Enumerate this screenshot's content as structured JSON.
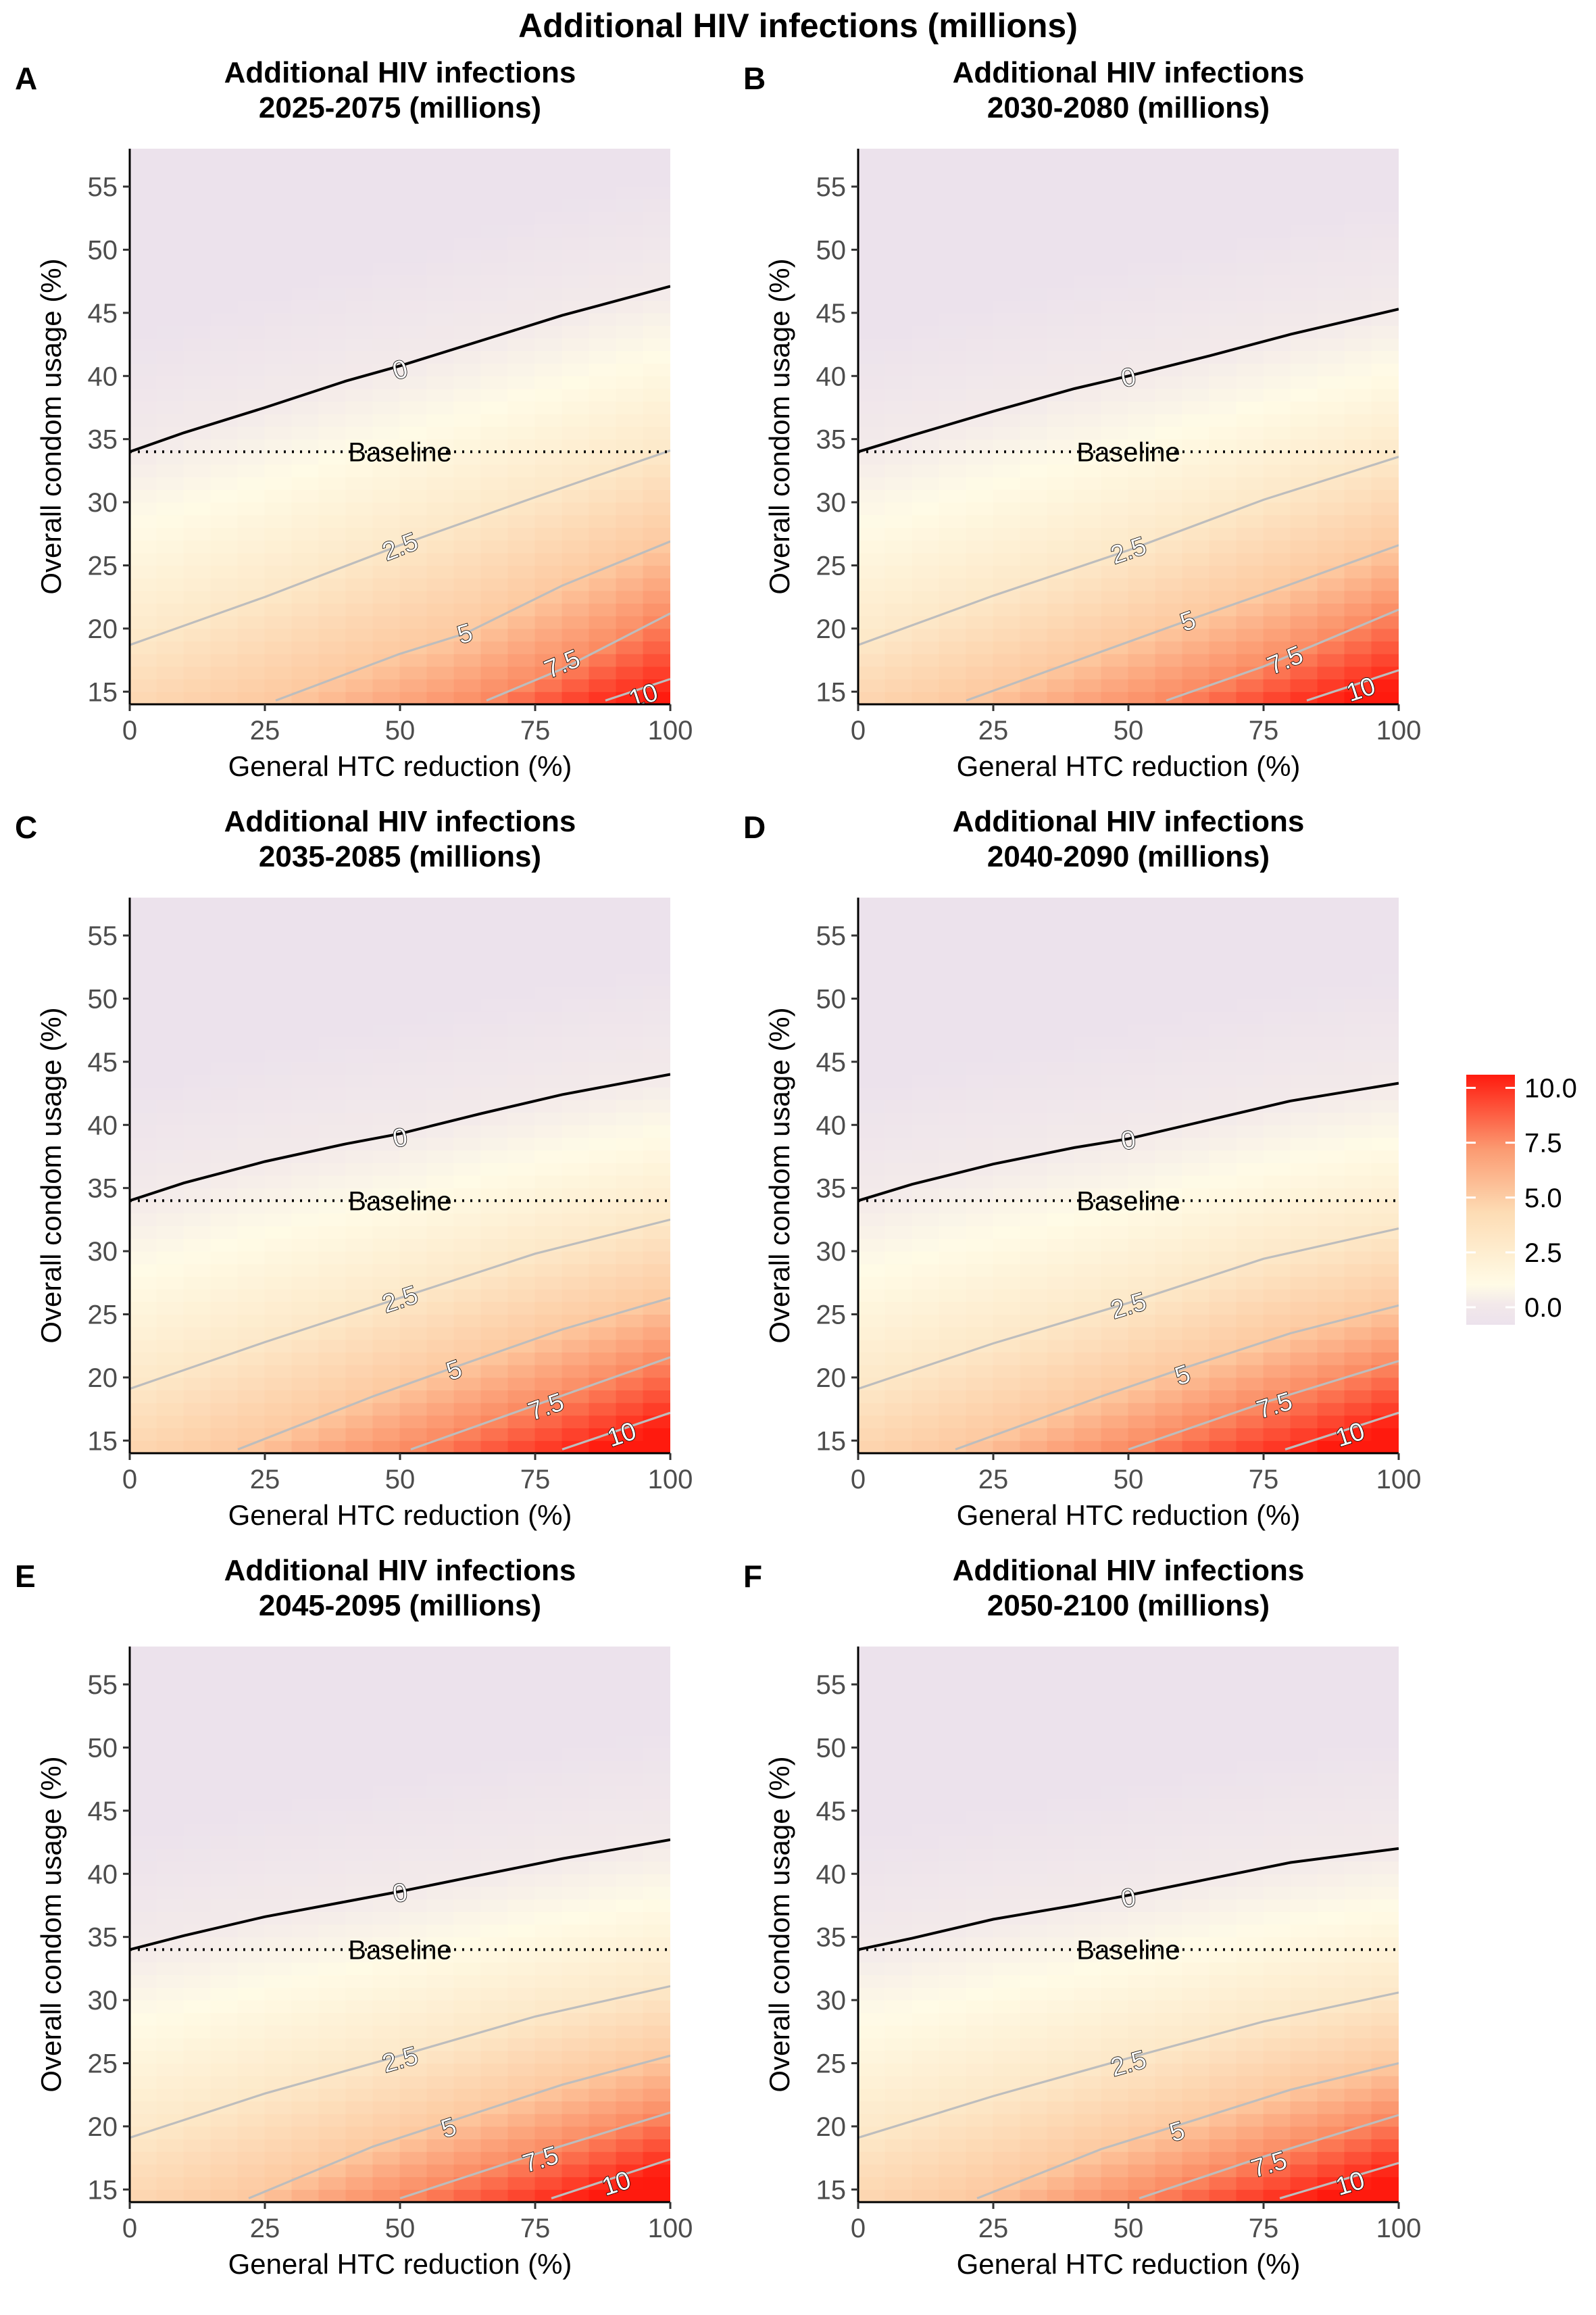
{
  "figure": {
    "title": "Additional HIV infections (millions)"
  },
  "chart_data": [
    {
      "type": "heatmap",
      "panel_letter": "A",
      "title": [
        "Additional HIV infections",
        "2025-2075 (millions)"
      ],
      "xlabel": "General HTC reduction (%)",
      "ylabel": "Overall condom usage (%)",
      "xlim": [
        0,
        100
      ],
      "ylim": [
        14,
        58
      ],
      "xticks": [
        0,
        25,
        50,
        75,
        100
      ],
      "yticks": [
        15,
        20,
        25,
        30,
        35,
        40,
        45,
        50,
        55
      ],
      "baseline": {
        "y": 34,
        "label": "Baseline"
      },
      "contours": [
        {
          "level": "0",
          "color": "#000000",
          "points": [
            [
              0,
              34
            ],
            [
              10,
              35.5
            ],
            [
              25,
              37.5
            ],
            [
              40,
              39.6
            ],
            [
              50,
              40.8
            ],
            [
              65,
              42.8
            ],
            [
              80,
              44.8
            ],
            [
              100,
              47.1
            ]
          ],
          "label_at": [
            50,
            40.5
          ]
        },
        {
          "level": "2.5",
          "color": "#bdbdbd",
          "points": [
            [
              0,
              18.7
            ],
            [
              25,
              22.5
            ],
            [
              50,
              26.6
            ],
            [
              75,
              30.4
            ],
            [
              100,
              34.1
            ]
          ],
          "label_at": [
            50,
            26.5
          ]
        },
        {
          "level": "5",
          "color": "#bdbdbd",
          "points": [
            [
              27,
              14.3
            ],
            [
              50,
              18
            ],
            [
              62,
              19.6
            ],
            [
              80,
              23.4
            ],
            [
              100,
              26.9
            ]
          ],
          "label_at": [
            62,
            19.6
          ]
        },
        {
          "level": "7.5",
          "color": "#bdbdbd",
          "points": [
            [
              66,
              14.3
            ],
            [
              80,
              16.8
            ],
            [
              100,
              21.2
            ]
          ],
          "label_at": [
            80,
            17.2
          ]
        },
        {
          "level": "10",
          "color": "#bdbdbd",
          "points": [
            [
              88,
              14.3
            ],
            [
              100,
              16
            ]
          ],
          "label_at": [
            95,
            14.7
          ]
        }
      ]
    },
    {
      "type": "heatmap",
      "panel_letter": "B",
      "title": [
        "Additional HIV infections",
        "2030-2080 (millions)"
      ],
      "xlabel": "General HTC reduction (%)",
      "ylabel": "Overall condom usage (%)",
      "xlim": [
        0,
        100
      ],
      "ylim": [
        14,
        58
      ],
      "xticks": [
        0,
        25,
        50,
        75,
        100
      ],
      "yticks": [
        15,
        20,
        25,
        30,
        35,
        40,
        45,
        50,
        55
      ],
      "baseline": {
        "y": 34,
        "label": "Baseline"
      },
      "contours": [
        {
          "level": "0",
          "color": "#000000",
          "points": [
            [
              0,
              34
            ],
            [
              10,
              35.3
            ],
            [
              25,
              37.2
            ],
            [
              40,
              39
            ],
            [
              50,
              40
            ],
            [
              65,
              41.6
            ],
            [
              80,
              43.3
            ],
            [
              100,
              45.3
            ]
          ],
          "label_at": [
            50,
            39.9
          ]
        },
        {
          "level": "2.5",
          "color": "#bdbdbd",
          "points": [
            [
              0,
              18.7
            ],
            [
              25,
              22.6
            ],
            [
              50,
              26.2
            ],
            [
              75,
              30.2
            ],
            [
              100,
              33.6
            ]
          ],
          "label_at": [
            50,
            26.2
          ]
        },
        {
          "level": "5",
          "color": "#bdbdbd",
          "points": [
            [
              20,
              14.3
            ],
            [
              40,
              17.4
            ],
            [
              62,
              20.8
            ],
            [
              80,
              23.5
            ],
            [
              100,
              26.6
            ]
          ],
          "label_at": [
            61,
            20.6
          ]
        },
        {
          "level": "7.5",
          "color": "#bdbdbd",
          "points": [
            [
              57,
              14.3
            ],
            [
              75,
              17
            ],
            [
              100,
              21.5
            ]
          ],
          "label_at": [
            79,
            17.5
          ]
        },
        {
          "level": "10",
          "color": "#bdbdbd",
          "points": [
            [
              83,
              14.3
            ],
            [
              100,
              16.7
            ]
          ],
          "label_at": [
            93,
            15.2
          ]
        }
      ]
    },
    {
      "type": "heatmap",
      "panel_letter": "C",
      "title": [
        "Additional HIV infections",
        "2035-2085 (millions)"
      ],
      "xlabel": "General HTC reduction (%)",
      "ylabel": "Overall condom usage (%)",
      "xlim": [
        0,
        100
      ],
      "ylim": [
        14,
        58
      ],
      "xticks": [
        0,
        25,
        50,
        75,
        100
      ],
      "yticks": [
        15,
        20,
        25,
        30,
        35,
        40,
        45,
        50,
        55
      ],
      "baseline": {
        "y": 34,
        "label": "Baseline"
      },
      "contours": [
        {
          "level": "0",
          "color": "#000000",
          "points": [
            [
              0,
              34
            ],
            [
              10,
              35.4
            ],
            [
              25,
              37.1
            ],
            [
              40,
              38.5
            ],
            [
              50,
              39.3
            ],
            [
              65,
              40.9
            ],
            [
              80,
              42.4
            ],
            [
              100,
              44
            ]
          ],
          "label_at": [
            50,
            39
          ]
        },
        {
          "level": "2.5",
          "color": "#bdbdbd",
          "points": [
            [
              0,
              19.1
            ],
            [
              25,
              22.8
            ],
            [
              50,
              26.3
            ],
            [
              75,
              29.8
            ],
            [
              100,
              32.5
            ]
          ],
          "label_at": [
            50,
            26.2
          ]
        },
        {
          "level": "5",
          "color": "#bdbdbd",
          "points": [
            [
              20,
              14.3
            ],
            [
              45,
              18.5
            ],
            [
              60,
              20.8
            ],
            [
              80,
              23.8
            ],
            [
              100,
              26.3
            ]
          ],
          "label_at": [
            60,
            20.6
          ]
        },
        {
          "level": "7.5",
          "color": "#bdbdbd",
          "points": [
            [
              52,
              14.3
            ],
            [
              75,
              17.8
            ],
            [
              100,
              21.6
            ]
          ],
          "label_at": [
            77,
            17.7
          ]
        },
        {
          "level": "10",
          "color": "#bdbdbd",
          "points": [
            [
              80,
              14.3
            ],
            [
              100,
              17.2
            ]
          ],
          "label_at": [
            91,
            15.5
          ]
        }
      ]
    },
    {
      "type": "heatmap",
      "panel_letter": "D",
      "title": [
        "Additional HIV infections",
        "2040-2090 (millions)"
      ],
      "xlabel": "General HTC reduction (%)",
      "ylabel": "Overall condom usage (%)",
      "xlim": [
        0,
        100
      ],
      "ylim": [
        14,
        58
      ],
      "xticks": [
        0,
        25,
        50,
        75,
        100
      ],
      "yticks": [
        15,
        20,
        25,
        30,
        35,
        40,
        45,
        50,
        55
      ],
      "baseline": {
        "y": 34,
        "label": "Baseline"
      },
      "contours": [
        {
          "level": "0",
          "color": "#000000",
          "points": [
            [
              0,
              34
            ],
            [
              10,
              35.3
            ],
            [
              25,
              36.9
            ],
            [
              40,
              38.2
            ],
            [
              50,
              38.9
            ],
            [
              65,
              40.4
            ],
            [
              80,
              41.9
            ],
            [
              100,
              43.3
            ]
          ],
          "label_at": [
            50,
            38.8
          ]
        },
        {
          "level": "2.5",
          "color": "#bdbdbd",
          "points": [
            [
              0,
              19.1
            ],
            [
              25,
              22.7
            ],
            [
              50,
              25.9
            ],
            [
              75,
              29.4
            ],
            [
              100,
              31.8
            ]
          ],
          "label_at": [
            50,
            25.7
          ]
        },
        {
          "level": "5",
          "color": "#bdbdbd",
          "points": [
            [
              18,
              14.3
            ],
            [
              45,
              18.5
            ],
            [
              60,
              20.7
            ],
            [
              80,
              23.5
            ],
            [
              100,
              25.7
            ]
          ],
          "label_at": [
            60,
            20.2
          ]
        },
        {
          "level": "7.5",
          "color": "#bdbdbd",
          "points": [
            [
              50,
              14.3
            ],
            [
              75,
              18
            ],
            [
              100,
              21.3
            ]
          ],
          "label_at": [
            77,
            17.8
          ]
        },
        {
          "level": "10",
          "color": "#bdbdbd",
          "points": [
            [
              79,
              14.3
            ],
            [
              100,
              17.2
            ]
          ],
          "label_at": [
            91,
            15.5
          ]
        }
      ]
    },
    {
      "type": "heatmap",
      "panel_letter": "E",
      "title": [
        "Additional HIV infections",
        "2045-2095 (millions)"
      ],
      "xlabel": "General HTC reduction (%)",
      "ylabel": "Overall condom usage (%)",
      "xlim": [
        0,
        100
      ],
      "ylim": [
        14,
        58
      ],
      "xticks": [
        0,
        25,
        50,
        75,
        100
      ],
      "yticks": [
        15,
        20,
        25,
        30,
        35,
        40,
        45,
        50,
        55
      ],
      "baseline": {
        "y": 34,
        "label": "Baseline"
      },
      "contours": [
        {
          "level": "0",
          "color": "#000000",
          "points": [
            [
              0,
              34
            ],
            [
              10,
              35.1
            ],
            [
              25,
              36.6
            ],
            [
              40,
              37.8
            ],
            [
              50,
              38.6
            ],
            [
              65,
              39.9
            ],
            [
              80,
              41.2
            ],
            [
              100,
              42.7
            ]
          ],
          "label_at": [
            50,
            38.5
          ]
        },
        {
          "level": "2.5",
          "color": "#bdbdbd",
          "points": [
            [
              0,
              19.1
            ],
            [
              25,
              22.6
            ],
            [
              50,
              25.6
            ],
            [
              75,
              28.7
            ],
            [
              100,
              31.1
            ]
          ],
          "label_at": [
            50,
            25.3
          ]
        },
        {
          "level": "5",
          "color": "#bdbdbd",
          "points": [
            [
              22,
              14.3
            ],
            [
              45,
              18.4
            ],
            [
              60,
              20.5
            ],
            [
              80,
              23.3
            ],
            [
              100,
              25.6
            ]
          ],
          "label_at": [
            59,
            19.9
          ]
        },
        {
          "level": "7.5",
          "color": "#bdbdbd",
          "points": [
            [
              50,
              14.3
            ],
            [
              75,
              17.8
            ],
            [
              100,
              21.1
            ]
          ],
          "label_at": [
            76,
            17.4
          ]
        },
        {
          "level": "10",
          "color": "#bdbdbd",
          "points": [
            [
              78,
              14.3
            ],
            [
              100,
              17.4
            ]
          ],
          "label_at": [
            90,
            15.5
          ]
        }
      ]
    },
    {
      "type": "heatmap",
      "panel_letter": "F",
      "title": [
        "Additional HIV infections",
        "2050-2100 (millions)"
      ],
      "xlabel": "General HTC reduction (%)",
      "ylabel": "Overall condom usage (%)",
      "xlim": [
        0,
        100
      ],
      "ylim": [
        14,
        58
      ],
      "xticks": [
        0,
        25,
        50,
        75,
        100
      ],
      "yticks": [
        15,
        20,
        25,
        30,
        35,
        40,
        45,
        50,
        55
      ],
      "baseline": {
        "y": 34,
        "label": "Baseline"
      },
      "contours": [
        {
          "level": "0",
          "color": "#000000",
          "points": [
            [
              0,
              34
            ],
            [
              10,
              34.9
            ],
            [
              25,
              36.4
            ],
            [
              40,
              37.5
            ],
            [
              50,
              38.3
            ],
            [
              65,
              39.6
            ],
            [
              80,
              40.9
            ],
            [
              100,
              42
            ]
          ],
          "label_at": [
            50,
            38.1
          ]
        },
        {
          "level": "2.5",
          "color": "#bdbdbd",
          "points": [
            [
              0,
              19.1
            ],
            [
              25,
              22.4
            ],
            [
              50,
              25.4
            ],
            [
              75,
              28.3
            ],
            [
              100,
              30.6
            ]
          ],
          "label_at": [
            50,
            25
          ]
        },
        {
          "level": "5",
          "color": "#bdbdbd",
          "points": [
            [
              22,
              14.3
            ],
            [
              45,
              18.2
            ],
            [
              60,
              20.2
            ],
            [
              80,
              22.9
            ],
            [
              100,
              25
            ]
          ],
          "label_at": [
            59,
            19.6
          ]
        },
        {
          "level": "7.5",
          "color": "#bdbdbd",
          "points": [
            [
              52,
              14.3
            ],
            [
              75,
              17.6
            ],
            [
              100,
              20.9
            ]
          ],
          "label_at": [
            76,
            17
          ]
        },
        {
          "level": "10",
          "color": "#bdbdbd",
          "points": [
            [
              78,
              14.3
            ],
            [
              100,
              17.1
            ]
          ],
          "label_at": [
            91,
            15.5
          ]
        }
      ]
    }
  ],
  "legend": {
    "labels": [
      "10.0",
      "7.5",
      "5.0",
      "2.5",
      "0.0"
    ],
    "values": [
      10,
      7.5,
      5,
      2.5,
      0
    ],
    "range": [
      -0.8,
      10.6
    ],
    "colors": {
      "low": "#ece2ec",
      "zero": "#fffbe6",
      "mid": "#fdd6ac",
      "high": "#ff1a0e"
    }
  }
}
